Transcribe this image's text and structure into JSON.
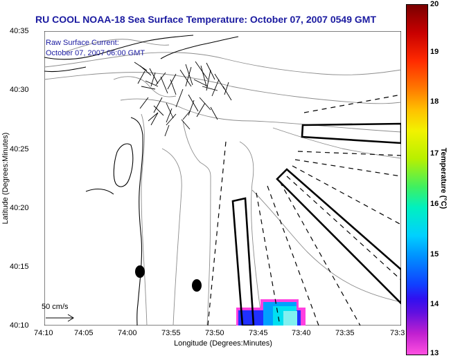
{
  "title": "RU COOL  NOAA-18  Sea Surface Temperature:  October 07, 2007 0549 GMT",
  "overlay": {
    "line1": "Raw Surface Current:",
    "line2": "October 07, 2007 06:00 GMT",
    "scale_label": "50 cm/s"
  },
  "axes": {
    "ylabel": "Latitude (Degrees:Minutes)",
    "xlabel": "Longitude (Degrees:Minutes)",
    "yticks": [
      "40:35",
      "40:30",
      "40:25",
      "40:20",
      "40:15",
      "40:10"
    ],
    "xticks": [
      "74:10",
      "74:05",
      "74:00",
      "73:55",
      "73:50",
      "73:45",
      "73:40",
      "73:35",
      "73:3"
    ]
  },
  "colorbar": {
    "label": "Temperature (°C)",
    "ticks": [
      "20",
      "19",
      "18",
      "17",
      "16",
      "15",
      "14",
      "13"
    ],
    "range": [
      13,
      20
    ]
  },
  "colors": {
    "title": "#1a1aa0",
    "coast": "#000000",
    "bathy": "#8c8c8c"
  }
}
